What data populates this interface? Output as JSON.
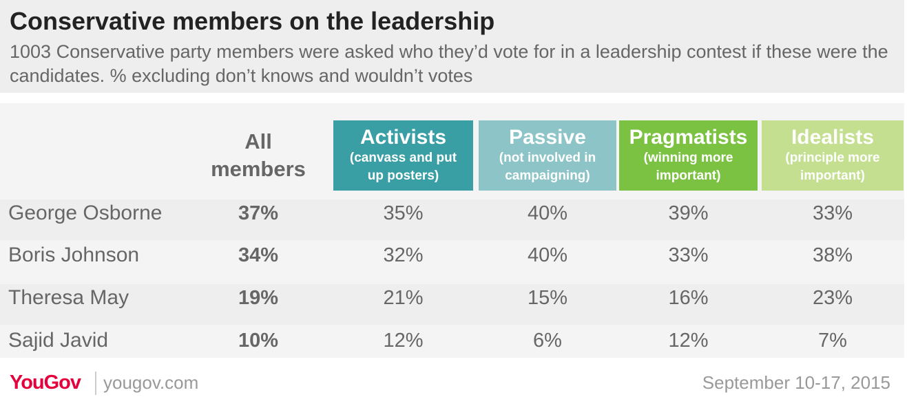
{
  "title": "Conservative members on the leadership",
  "subtitle": "1003 Conservative party members were asked who they’d vote for in a leadership contest if these were the candidates. % excluding don’t knows and wouldn’t votes",
  "chart_data": {
    "type": "table",
    "all_members_header": [
      "All",
      "members"
    ],
    "columns": [
      {
        "name": "Activists",
        "sub": [
          "(canvass and put",
          "up posters)"
        ],
        "color": "#3a9fa5"
      },
      {
        "name": "Passive",
        "sub": [
          "(not involved in",
          "campaigning)"
        ],
        "color": "#8cc4c7"
      },
      {
        "name": "Pragmatists",
        "sub": [
          "(winning more",
          "important)"
        ],
        "color": "#7cc242"
      },
      {
        "name": "Idealists",
        "sub": [
          "(principle more",
          "important)"
        ],
        "color": "#c3df8f"
      }
    ],
    "rows": [
      {
        "name": "George Osborne",
        "all": "37%",
        "values": [
          "35%",
          "40%",
          "39%",
          "33%"
        ]
      },
      {
        "name": "Boris Johnson",
        "all": "34%",
        "values": [
          "32%",
          "40%",
          "33%",
          "38%"
        ]
      },
      {
        "name": "Theresa May",
        "all": "19%",
        "values": [
          "21%",
          "15%",
          "16%",
          "23%"
        ]
      },
      {
        "name": "Sajid Javid",
        "all": "10%",
        "values": [
          "12%",
          "6%",
          "12%",
          "7%"
        ]
      }
    ]
  },
  "footer": {
    "brand": "YouGov",
    "url": "yougov.com",
    "date": "September 10-17, 2015"
  }
}
